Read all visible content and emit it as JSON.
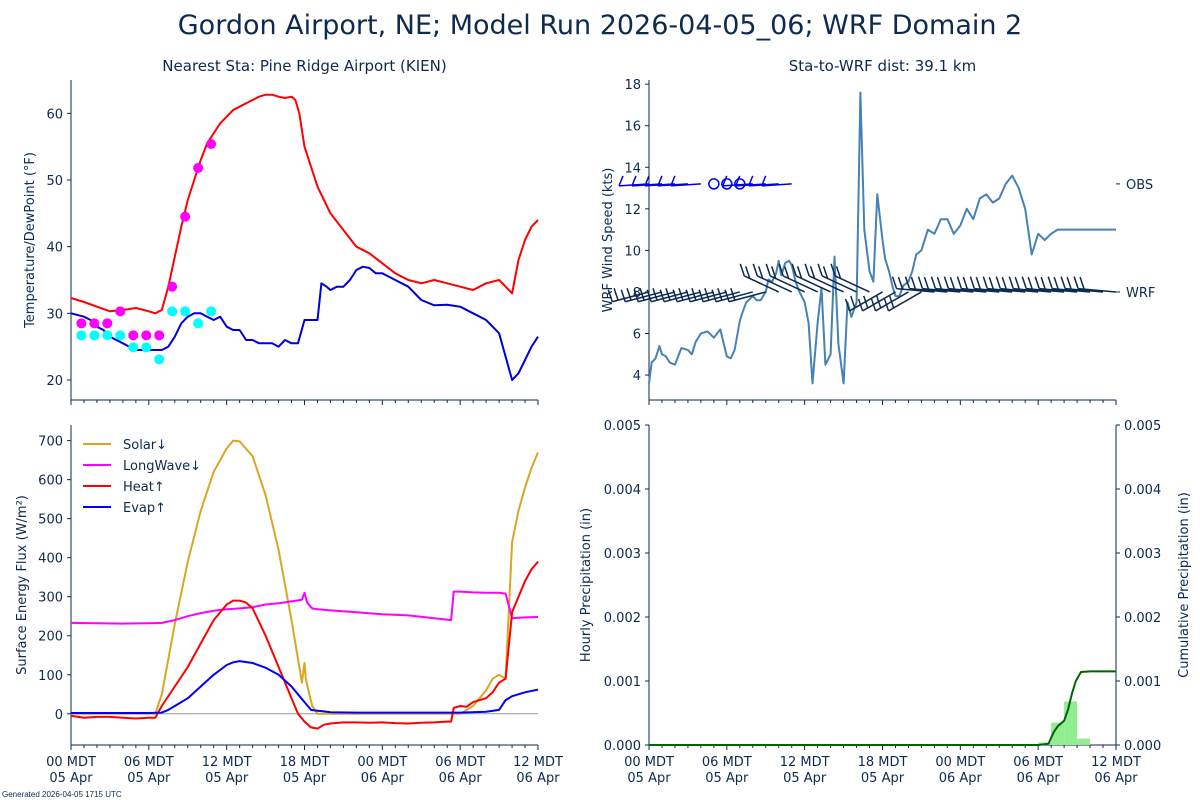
{
  "title": "Gordon Airport, NE; Model Run 2026-04-05_06; WRF Domain 2",
  "footer": "Generated 2026-04-05 1715 UTC",
  "chart_data": [
    {
      "id": "temp",
      "type": "line",
      "title": "Nearest Sta: Pine Ridge Airport (KIEN)",
      "ylabel": "Temperature/DewPoint (°F)",
      "ylim": [
        17,
        65
      ],
      "yticks": [
        20,
        30,
        40,
        50,
        60
      ],
      "xlim": [
        0,
        36
      ],
      "series": [
        {
          "name": "WRF Temperature",
          "color": "#ff0000",
          "x": [
            0,
            1,
            2,
            3,
            4,
            5,
            6,
            6.5,
            7,
            7.5,
            8,
            8.5,
            9,
            9.5,
            10,
            10.5,
            11,
            11.5,
            12,
            12.5,
            13,
            13.5,
            14,
            14.5,
            15,
            15.5,
            16,
            16.5,
            17,
            17.3,
            17.6,
            18,
            18.5,
            19,
            19.5,
            20,
            21,
            22,
            23,
            24,
            25,
            26,
            27,
            28,
            29,
            30,
            31,
            32,
            33,
            34,
            34.5,
            35,
            35.5,
            36
          ],
          "y": [
            32.3,
            31.7,
            31,
            30.3,
            30.5,
            30.8,
            30.3,
            30,
            30.5,
            34,
            38.5,
            43,
            47,
            50,
            53,
            55.5,
            57,
            58.5,
            59.5,
            60.5,
            61,
            61.5,
            62,
            62.5,
            62.8,
            62.8,
            62.5,
            62.3,
            62.5,
            62,
            60,
            55,
            52,
            49,
            47,
            45,
            42.5,
            40,
            39,
            37.5,
            36,
            35,
            34.5,
            35,
            34.5,
            34,
            33.5,
            34.5,
            35,
            33,
            38,
            41,
            43,
            44
          ]
        },
        {
          "name": "WRF DewPoint",
          "color": "#0000dd",
          "x": [
            0,
            1,
            1.5,
            2,
            2.5,
            3,
            3.5,
            4,
            4.5,
            5,
            6,
            7,
            7.5,
            8,
            8.5,
            9,
            9.5,
            10,
            10.5,
            11,
            11.5,
            12,
            12.5,
            13,
            13.5,
            14,
            14.5,
            15,
            15.5,
            16,
            16.5,
            17,
            17.5,
            18,
            18.5,
            19,
            19.3,
            19.7,
            20,
            20.5,
            21,
            21.5,
            22,
            22.5,
            23,
            23.5,
            24,
            25,
            26,
            27,
            28,
            29,
            30,
            31,
            32,
            33,
            34,
            34.5,
            35,
            35.5,
            36
          ],
          "y": [
            30,
            29.5,
            29,
            28,
            27.5,
            26.5,
            26,
            25.5,
            25,
            24.5,
            24.5,
            24.5,
            25,
            26.5,
            28.5,
            29.5,
            30,
            30,
            29.5,
            29,
            29.5,
            28,
            27.5,
            27.5,
            26,
            26,
            25.5,
            25.5,
            25.5,
            25,
            26,
            25.5,
            25.5,
            29,
            29,
            29,
            34.5,
            34,
            33.5,
            34,
            34,
            35,
            36.5,
            37,
            36.8,
            36,
            36,
            35,
            34,
            32,
            31.2,
            31.3,
            31,
            30,
            29,
            27,
            20,
            21,
            23,
            25,
            26.5
          ]
        }
      ],
      "obs_temperature": {
        "name": "OBS Temperature",
        "color": "#ff00ff",
        "x": [
          0.8,
          1.8,
          2.8,
          3.8,
          4.8,
          5.8,
          6.8,
          7.8,
          8.8,
          9.8,
          10.8
        ],
        "y": [
          28.5,
          28.5,
          28.5,
          30.3,
          26.7,
          26.7,
          26.7,
          34,
          44.5,
          51.8,
          55.4
        ]
      },
      "obs_dewpoint": {
        "name": "OBS DewPoint",
        "color": "#00ffff",
        "x": [
          0.8,
          1.8,
          2.8,
          3.8,
          4.8,
          5.8,
          6.8,
          7.8,
          8.8,
          9.8,
          10.8
        ],
        "y": [
          26.7,
          26.7,
          26.7,
          26.7,
          24.9,
          24.9,
          23.1,
          30.3,
          30.3,
          28.5,
          30.3
        ]
      }
    },
    {
      "id": "wind",
      "type": "line",
      "title": "Sta-to-WRF dist: 39.1 km",
      "ylabel": "WRF Wind Speed (kts)",
      "ylim": [
        2.8,
        18.2
      ],
      "yticks": [
        4,
        6,
        8,
        10,
        12,
        14,
        16,
        18
      ],
      "xlim": [
        0,
        36
      ],
      "right_labels": [
        {
          "text": "OBS",
          "y": 13.2
        },
        {
          "text": "WRF",
          "y": 8.0
        }
      ],
      "series": [
        {
          "name": "WRF Wind Speed",
          "color": "#4682b4",
          "x": [
            0,
            0.2,
            0.5,
            0.8,
            1,
            1.3,
            1.6,
            2,
            2.5,
            3,
            3.3,
            3.6,
            4,
            4.5,
            5,
            5.5,
            6,
            6.3,
            6.6,
            7,
            7.2,
            7.5,
            8,
            8.3,
            8.6,
            9,
            9.2,
            9.5,
            9.8,
            10,
            10.2,
            10.5,
            10.8,
            11,
            11.3,
            11.6,
            12,
            12.3,
            12.6,
            13,
            13.3,
            13.6,
            14,
            14.3,
            14.6,
            15,
            15.3,
            15.6,
            16,
            16.3,
            16.6,
            17,
            17.3,
            17.6,
            18,
            18.2,
            18.5,
            18.8,
            19,
            19.3,
            19.6,
            20,
            20.3,
            20.6,
            21,
            21.5,
            22,
            22.5,
            23,
            23.5,
            24,
            24.5,
            25,
            25.5,
            26,
            26.5,
            27,
            27.5,
            28,
            28.5,
            29,
            29.5,
            30,
            30.5,
            31,
            31.5,
            32,
            32.3,
            32.6,
            33,
            33.3,
            33.6,
            34,
            34.3,
            34.6,
            35,
            35.3,
            35.6,
            36
          ],
          "y": [
            3.6,
            4.6,
            4.8,
            5.4,
            5,
            4.9,
            4.6,
            4.5,
            5.3,
            5.2,
            5,
            5.6,
            6,
            6.1,
            5.8,
            6.2,
            4.9,
            4.8,
            5.2,
            6.6,
            7,
            7.5,
            7.8,
            7.6,
            7.6,
            8,
            8.6,
            8.5,
            8.9,
            9.5,
            8.8,
            9.4,
            9.5,
            9.3,
            8.5,
            8,
            7.5,
            6.5,
            3.6,
            6.5,
            8.2,
            4.5,
            5,
            9.7,
            5.5,
            3.6,
            7.5,
            6.8,
            7.5,
            17.6,
            11,
            9,
            8.5,
            12.7,
            10.5,
            9.6,
            9,
            8.2,
            7.8,
            7.8,
            8.3,
            8.5,
            9,
            9.8,
            10,
            11,
            10.8,
            11.5,
            11.5,
            10.8,
            11.2,
            12,
            11.5,
            12.5,
            12.7,
            12.3,
            12.5,
            13.2,
            13.6,
            13,
            12,
            9.8,
            10.8,
            10.5,
            10.8,
            11,
            11,
            11,
            11,
            11,
            11,
            11,
            11,
            11,
            11,
            11,
            11,
            11,
            11
          ]
        }
      ],
      "wrf_barbs": {
        "name": "WRF Wind Barbs",
        "color": "#0d2a4f",
        "level": 8.0,
        "x": [
          0,
          1,
          2,
          3,
          4,
          5,
          6,
          7,
          8,
          9,
          10,
          11,
          12,
          13,
          14,
          15,
          16,
          17,
          18,
          19,
          20,
          21,
          22,
          23,
          24,
          25,
          26,
          27,
          28,
          29,
          30,
          31,
          32,
          33,
          34,
          35,
          36
        ]
      },
      "obs_barbs": {
        "name": "OBS Wind Barbs",
        "color": "#0000ee",
        "level": 13.2,
        "x": [
          0,
          1,
          2,
          3,
          4,
          5,
          6,
          7,
          8,
          9,
          10,
          11
        ],
        "calm": [
          5,
          6,
          7
        ]
      }
    },
    {
      "id": "flux",
      "type": "line",
      "ylabel": "Surface Energy Flux (W/m²)",
      "ylim": [
        -80,
        740
      ],
      "yticks": [
        0,
        100,
        200,
        300,
        400,
        500,
        600,
        700
      ],
      "xlim": [
        0,
        36
      ],
      "xticks": [
        0,
        6,
        12,
        18,
        24,
        30,
        36
      ],
      "xticklabels": [
        [
          "00 MDT",
          "05 Apr"
        ],
        [
          "06 MDT",
          "05 Apr"
        ],
        [
          "12 MDT",
          "05 Apr"
        ],
        [
          "18 MDT",
          "05 Apr"
        ],
        [
          "00 MDT",
          "06 Apr"
        ],
        [
          "06 MDT",
          "06 Apr"
        ],
        [
          "12 MDT",
          "06 Apr"
        ]
      ],
      "legend": {
        "placement": "top-left"
      },
      "series": [
        {
          "name": "Solar↓",
          "color": "#daa520",
          "x": [
            0,
            6.5,
            7,
            8,
            9,
            10,
            11,
            12,
            12.5,
            13,
            14,
            15,
            16,
            17,
            17.5,
            17.8,
            18,
            18.1,
            18.3,
            18.6,
            19,
            19.2,
            24,
            29,
            30,
            31,
            32,
            32.5,
            33,
            33.5,
            34,
            34.5,
            35,
            35.5,
            36
          ],
          "y": [
            0,
            0,
            50,
            230,
            390,
            520,
            620,
            680,
            700,
            698,
            660,
            560,
            420,
            240,
            140,
            80,
            130,
            90,
            60,
            20,
            0,
            0,
            0,
            0,
            0,
            20,
            60,
            90,
            100,
            90,
            440,
            520,
            580,
            630,
            670
          ]
        },
        {
          "name": "LongWave↓",
          "color": "#ff00ff",
          "x": [
            0,
            2,
            4,
            6,
            7,
            8,
            9,
            10,
            11,
            12,
            13,
            14,
            15,
            16,
            17,
            17.8,
            18,
            18.2,
            18.6,
            19,
            20,
            22,
            24,
            26,
            28,
            29.3,
            29.5,
            30,
            31,
            32,
            33,
            33.5,
            34,
            35,
            36
          ],
          "y": [
            233,
            232,
            231,
            232,
            233,
            240,
            250,
            258,
            264,
            268,
            270,
            273,
            280,
            283,
            288,
            292,
            310,
            285,
            270,
            268,
            265,
            260,
            255,
            252,
            245,
            240,
            313,
            313,
            311,
            310,
            310,
            308,
            245,
            247,
            248
          ]
        },
        {
          "name": "Heat↑",
          "color": "#ff0000",
          "x": [
            0,
            1,
            2,
            3,
            4,
            5,
            6,
            6.5,
            7,
            8,
            9,
            10,
            11,
            12,
            12.5,
            13,
            13.5,
            14,
            15,
            16,
            17,
            17.5,
            18,
            18.5,
            19,
            19.5,
            20,
            21,
            22,
            23,
            24,
            25,
            26,
            27,
            28,
            29,
            29.3,
            29.5,
            30,
            30.5,
            31,
            32,
            32.5,
            33,
            33.5,
            34,
            34.5,
            35,
            35.5,
            36
          ],
          "y": [
            -5,
            -10,
            -8,
            -8,
            -10,
            -12,
            -10,
            -10,
            20,
            70,
            120,
            180,
            240,
            280,
            290,
            290,
            285,
            270,
            200,
            120,
            40,
            0,
            -20,
            -35,
            -38,
            -28,
            -25,
            -22,
            -22,
            -23,
            -22,
            -24,
            -25,
            -23,
            -22,
            -20,
            -20,
            15,
            20,
            18,
            30,
            40,
            55,
            80,
            90,
            260,
            300,
            340,
            370,
            390
          ]
        },
        {
          "name": "Evap↑",
          "color": "#0000ff",
          "x": [
            0,
            2,
            4,
            6,
            7,
            7.5,
            8,
            9,
            10,
            11,
            12,
            12.5,
            13,
            14,
            15,
            16,
            17,
            17.5,
            18,
            18.5,
            19,
            19.5,
            20,
            22,
            24,
            26,
            28,
            30,
            32,
            33,
            33.5,
            34,
            35,
            36
          ],
          "y": [
            2,
            2,
            2,
            2,
            3,
            10,
            20,
            40,
            70,
            100,
            125,
            132,
            135,
            130,
            118,
            100,
            70,
            50,
            30,
            10,
            8,
            6,
            4,
            3,
            3,
            3,
            3,
            3,
            5,
            10,
            35,
            45,
            55,
            62
          ]
        }
      ]
    },
    {
      "id": "precip",
      "type": "bar",
      "ylabel": "Hourly Precipitation (in)",
      "ylabel_right": "Cumulative Precipitation (in)",
      "ylim": [
        0,
        0.005
      ],
      "yticks": [
        "0.000",
        "0.001",
        "0.002",
        "0.003",
        "0.004",
        "0.005"
      ],
      "xlim": [
        0,
        36
      ],
      "xticks": [
        0,
        6,
        12,
        18,
        24,
        30,
        36
      ],
      "xticklabels": [
        [
          "00 MDT",
          "05 Apr"
        ],
        [
          "06 MDT",
          "05 Apr"
        ],
        [
          "12 MDT",
          "05 Apr"
        ],
        [
          "18 MDT",
          "05 Apr"
        ],
        [
          "00 MDT",
          "06 Apr"
        ],
        [
          "06 MDT",
          "06 Apr"
        ],
        [
          "12 MDT",
          "06 Apr"
        ]
      ],
      "bars": {
        "name": "Hourly Precipitation",
        "color": "#90ee90",
        "x": [
          30,
          31,
          32,
          33
        ],
        "values": [
          4e-05,
          0.00035,
          0.00068,
          0.0001
        ]
      },
      "cumulative": {
        "name": "Cumulative Precipitation",
        "color": "#006400",
        "x": [
          0,
          30,
          30.8,
          31.2,
          31.5,
          32,
          32.3,
          32.6,
          32.9,
          33.3,
          34,
          36
        ],
        "y": [
          0,
          0,
          2e-05,
          0.0002,
          0.00029,
          0.00038,
          0.00055,
          0.0008,
          0.001,
          0.00114,
          0.00115,
          0.00115
        ]
      }
    }
  ]
}
